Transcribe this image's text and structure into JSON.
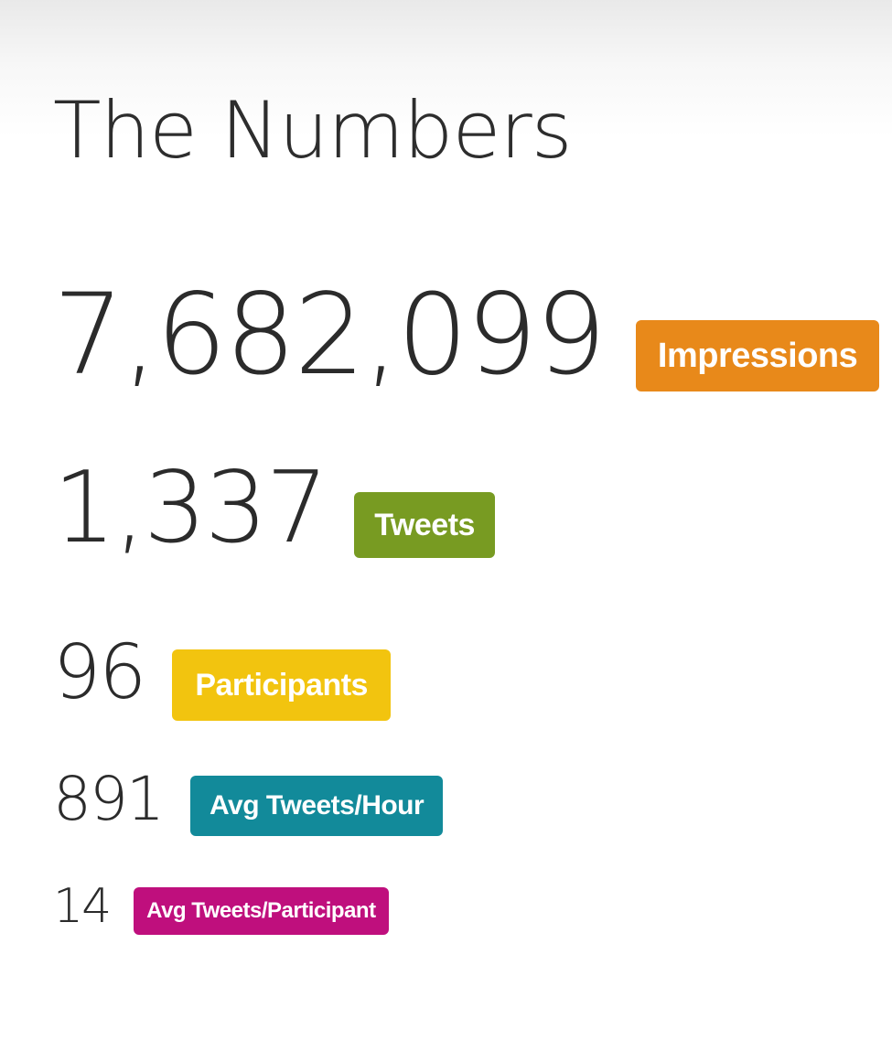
{
  "heading": "The Numbers",
  "stats": [
    {
      "value": "7,682,099",
      "label": "Impressions",
      "color": "#e8891a"
    },
    {
      "value": "1,337",
      "label": "Tweets",
      "color": "#789b22"
    },
    {
      "value": "96",
      "label": "Participants",
      "color": "#f2c40f"
    },
    {
      "value": "891",
      "label": "Avg Tweets/Hour",
      "color": "#128a9a"
    },
    {
      "value": "14",
      "label": "Avg Tweets/Participant",
      "color": "#bf0f7d"
    }
  ]
}
